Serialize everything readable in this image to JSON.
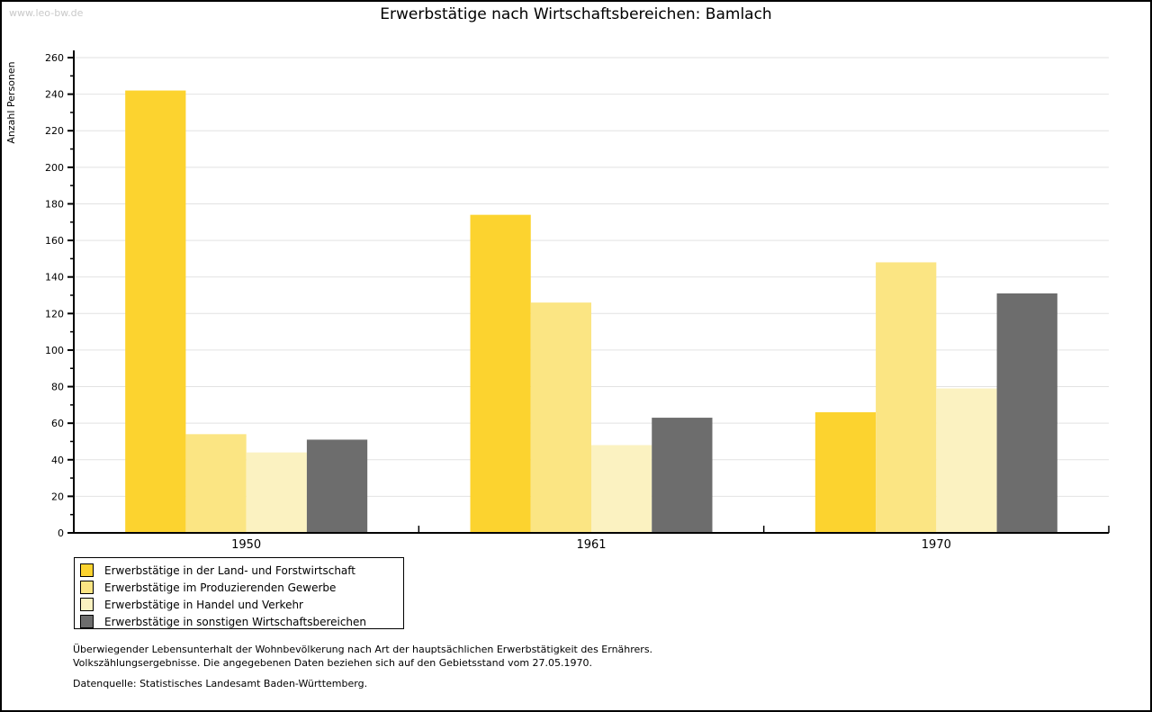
{
  "watermark": "www.leo-bw.de",
  "title": "Erwerbstätige nach Wirtschaftsbereichen: Bamlach",
  "footnote": {
    "line1": "Überwiegender Lebensunterhalt der Wohnbevölkerung nach Art der hauptsächlichen Erwerbstätigkeit des Ernährers.",
    "line2": "Volkszählungsergebnisse. Die angegebenen Daten beziehen sich auf den Gebietsstand vom 27.05.1970.",
    "source": "Datenquelle: Statistisches Landesamt Baden-Württemberg."
  },
  "chart_data": {
    "type": "bar",
    "title": "Erwerbstätige nach Wirtschaftsbereichen: Bamlach",
    "xlabel": "",
    "ylabel": "Anzahl Personen",
    "categories": [
      "1950",
      "1961",
      "1970"
    ],
    "series": [
      {
        "name": "Erwerbstätige in der Land- und Forstwirtschaft",
        "color": "#FCD32F",
        "values": [
          242,
          174,
          66
        ]
      },
      {
        "name": "Erwerbstätige im Produzierenden Gewerbe",
        "color": "#FBE583",
        "values": [
          54,
          126,
          148
        ]
      },
      {
        "name": "Erwerbstätige in Handel und Verkehr",
        "color": "#FBF2C1",
        "values": [
          44,
          48,
          79
        ]
      },
      {
        "name": "Erwerbstätige in sonstigen Wirtschaftsbereichen",
        "color": "#6D6D6D",
        "values": [
          51,
          63,
          131
        ]
      }
    ],
    "ylim": [
      0,
      260
    ],
    "ytick_step": 20,
    "yminor_step": 10,
    "grid": true,
    "gridline_color": "#E2E2E2",
    "axis_color": "#000000",
    "legend_position": "bottom-left"
  }
}
